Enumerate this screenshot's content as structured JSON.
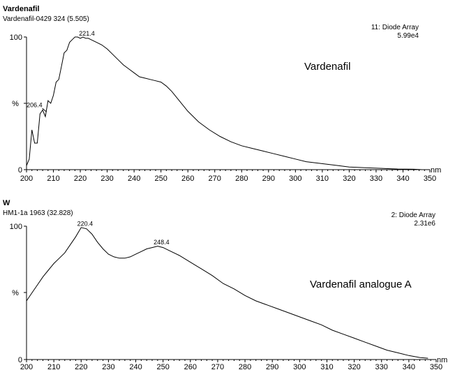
{
  "chart_data": [
    {
      "type": "line",
      "title": "Vardenafil",
      "subtitle": "Vardenafil-0429 324 (5.505)",
      "detector": "11: Diode Array",
      "scale": "5.99e4",
      "annotation": "Vardenafil",
      "ylabel": "%",
      "xunit": "nm",
      "xlim": [
        200,
        350
      ],
      "ylim": [
        0,
        100
      ],
      "x_ticks": [
        "200",
        "210",
        "220",
        "230",
        "240",
        "250",
        "260",
        "270",
        "280",
        "290",
        "300",
        "310",
        "320",
        "330",
        "340",
        "350"
      ],
      "y_ticks": [
        "0",
        "100"
      ],
      "peaks": [
        {
          "x": 206.4,
          "label": "206.4"
        },
        {
          "x": 221.4,
          "label": "221.4"
        }
      ],
      "x": [
        200,
        201,
        202,
        203,
        204,
        205,
        206,
        207,
        208,
        209,
        210,
        211,
        212,
        213,
        214,
        215,
        216,
        217,
        218,
        219,
        220,
        221,
        222,
        223,
        224,
        225,
        226,
        228,
        230,
        232,
        234,
        236,
        238,
        240,
        242,
        244,
        246,
        248,
        250,
        252,
        254,
        256,
        258,
        260,
        264,
        268,
        272,
        276,
        280,
        284,
        288,
        292,
        296,
        300,
        304,
        308,
        312,
        316,
        320,
        326,
        332,
        338,
        344,
        347
      ],
      "y": [
        3,
        8,
        30,
        20,
        20,
        42,
        45,
        40,
        52,
        50,
        56,
        66,
        68,
        78,
        88,
        90,
        96,
        98,
        100,
        100,
        99,
        100,
        99,
        99,
        98,
        97,
        96,
        94,
        91,
        87,
        83,
        79,
        76,
        73,
        70,
        69,
        68,
        67,
        66,
        63,
        59,
        54,
        49,
        44,
        36,
        30,
        25,
        21,
        18,
        16,
        14,
        12,
        10,
        8,
        6,
        5,
        4,
        3,
        2,
        1.5,
        1,
        0.5,
        0.3,
        0
      ]
    },
    {
      "type": "line",
      "title": "W",
      "subtitle": "HM1-1a 1963 (32.828)",
      "detector": "2: Diode Array",
      "scale": "2.31e6",
      "annotation": "Vardenafil analogue A",
      "ylabel": "%",
      "xunit": "nm",
      "xlim": [
        200,
        350
      ],
      "ylim": [
        0,
        100
      ],
      "x_ticks": [
        "200",
        "210",
        "220",
        "230",
        "240",
        "250",
        "260",
        "270",
        "280",
        "290",
        "300",
        "310",
        "320",
        "330",
        "340",
        "350"
      ],
      "y_ticks": [
        "0",
        "100"
      ],
      "peaks": [
        {
          "x": 220.4,
          "label": "220.4"
        },
        {
          "x": 248.4,
          "label": "248.4"
        }
      ],
      "x": [
        200,
        202,
        204,
        206,
        208,
        210,
        212,
        214,
        216,
        218,
        220,
        222,
        224,
        226,
        228,
        230,
        232,
        234,
        236,
        238,
        240,
        242,
        244,
        246,
        248,
        250,
        252,
        256,
        260,
        264,
        268,
        272,
        276,
        280,
        284,
        288,
        292,
        296,
        300,
        304,
        308,
        312,
        316,
        320,
        324,
        328,
        332,
        336,
        340,
        344,
        347
      ],
      "y": [
        44,
        50,
        56,
        62,
        67,
        72,
        76,
        80,
        86,
        92,
        99,
        98,
        94,
        88,
        83,
        79,
        77,
        76,
        76,
        77,
        79,
        81,
        83,
        84,
        85,
        84,
        82,
        78,
        73,
        68,
        63,
        57,
        53,
        48,
        44,
        41,
        38,
        35,
        32,
        29,
        26,
        22,
        19,
        16,
        13,
        10,
        7,
        5,
        3,
        1.5,
        1
      ]
    }
  ]
}
